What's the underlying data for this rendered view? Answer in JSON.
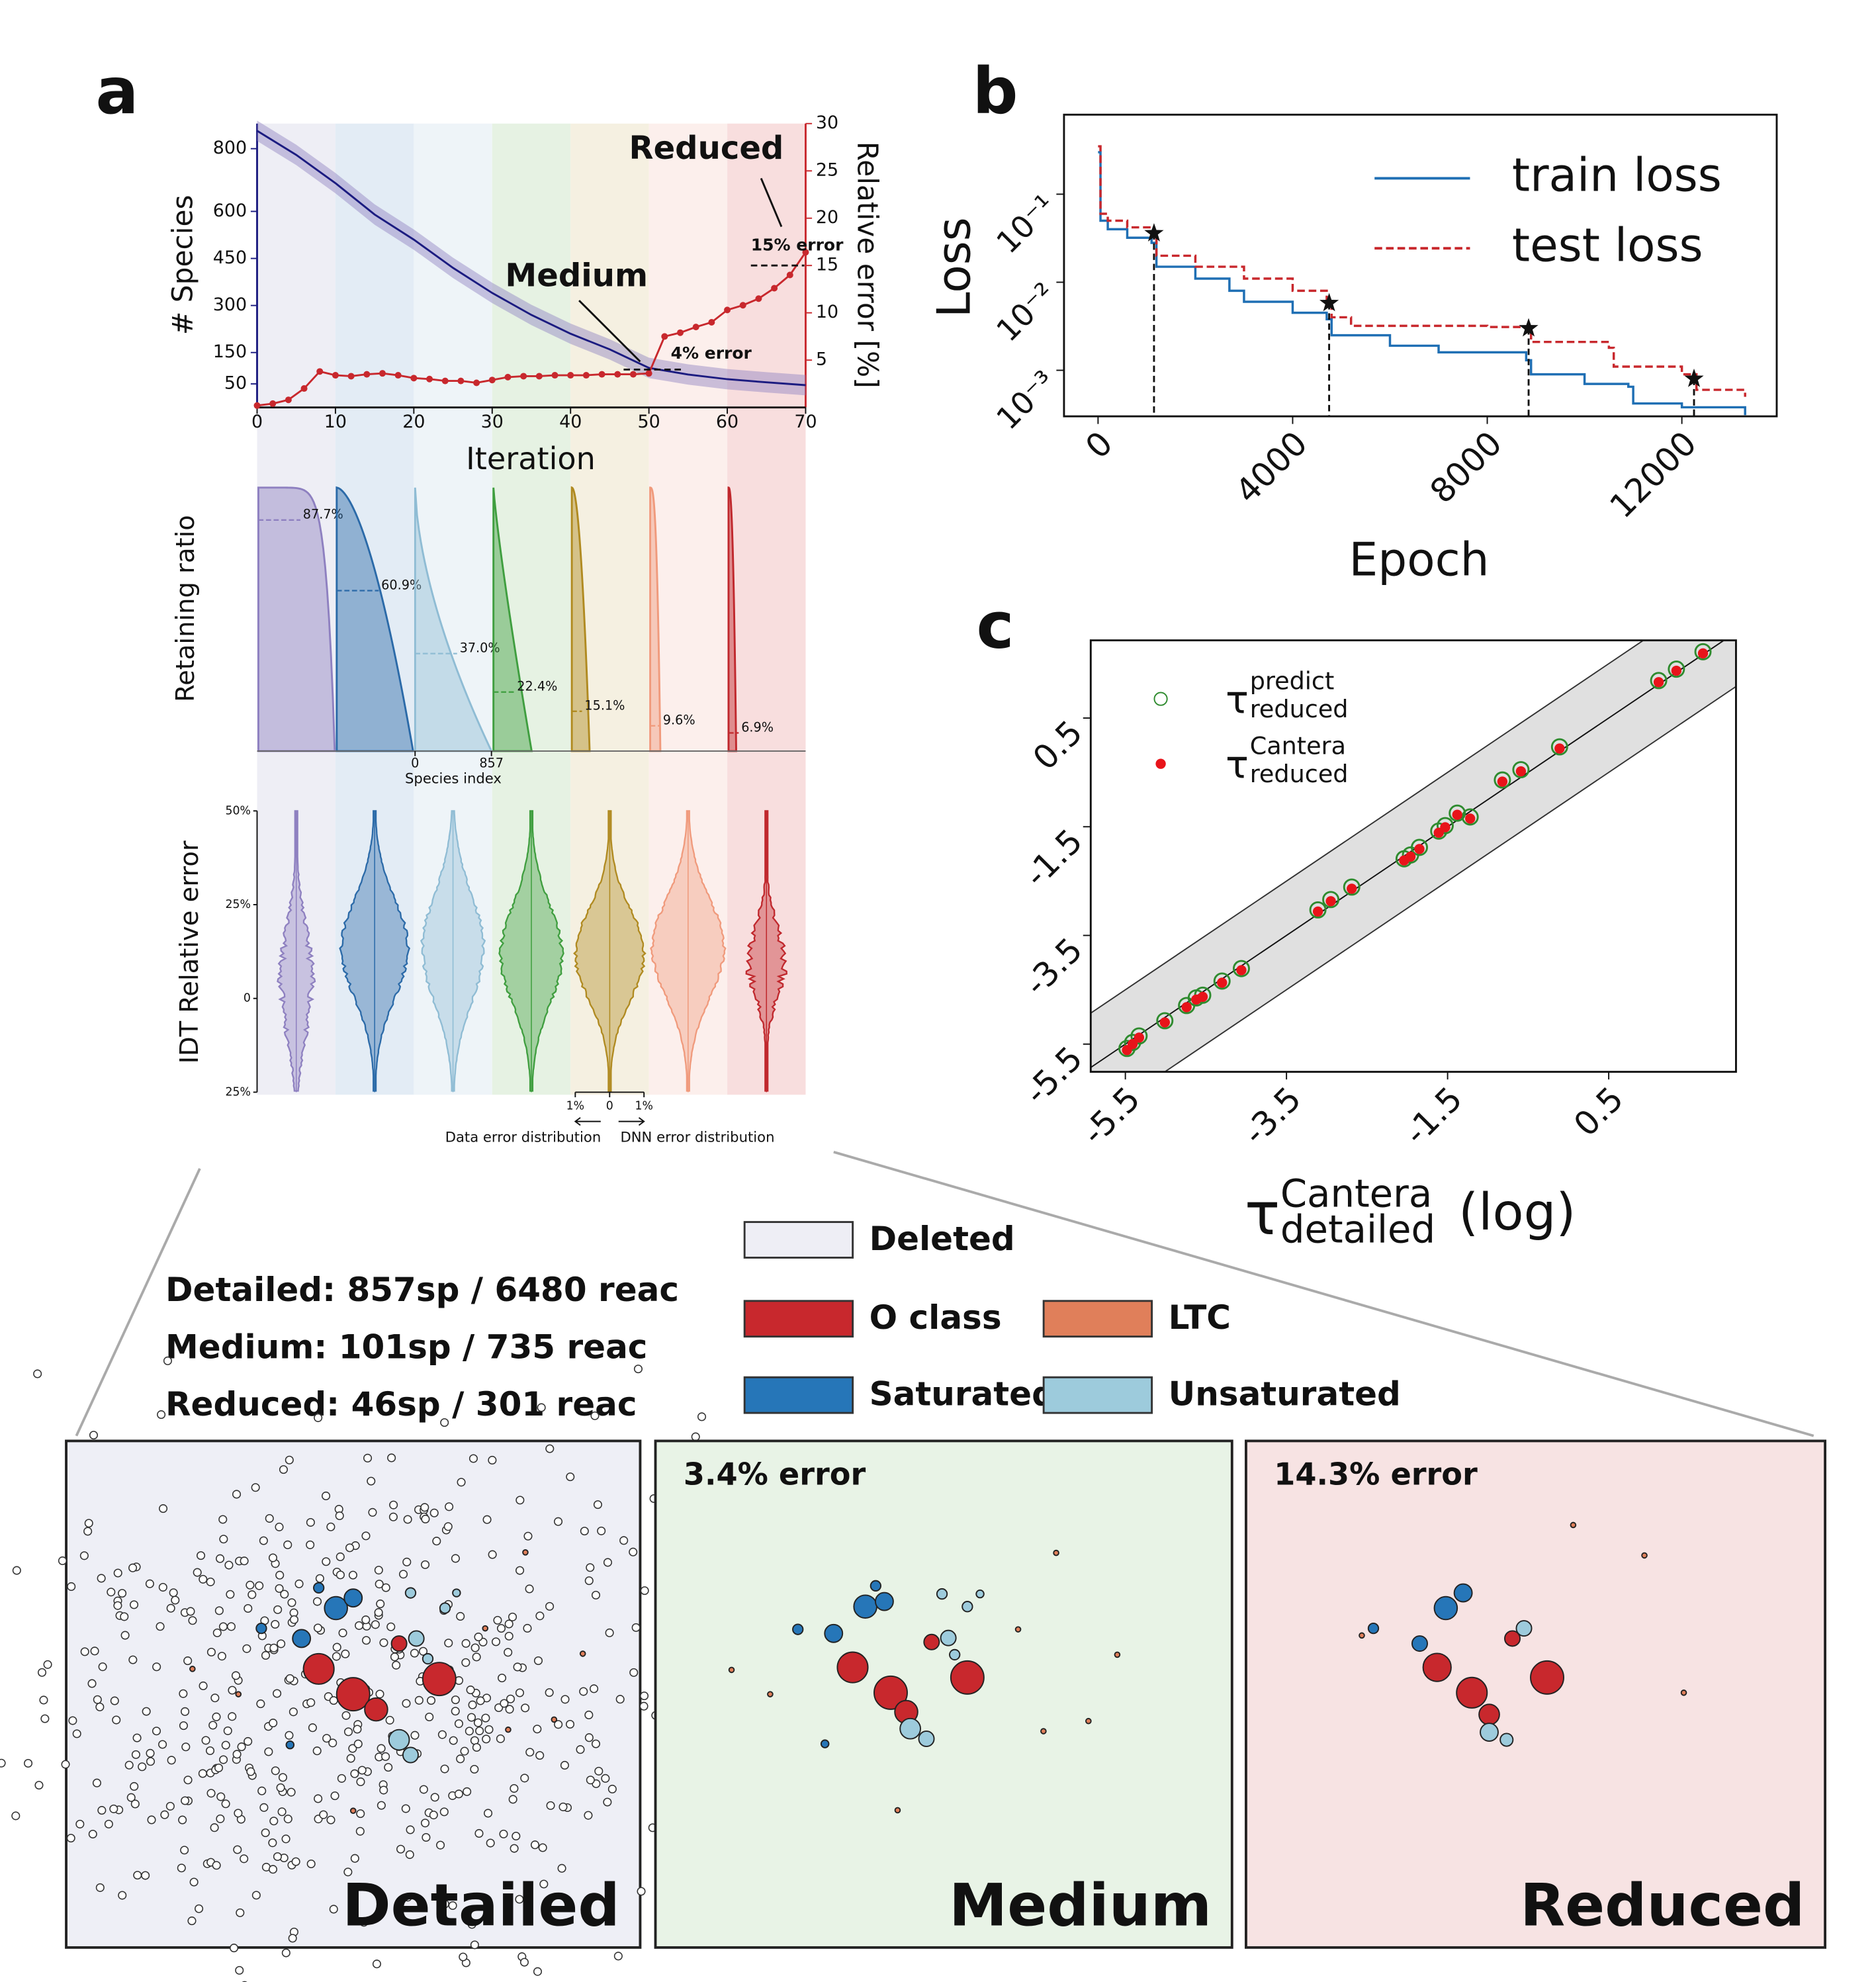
{
  "panel_labels": [
    "a",
    "b",
    "c"
  ],
  "chart_data": [
    {
      "type": "dual-line",
      "xlabel": "Iteration",
      "ylabel": "# Species",
      "y2label": "Relative error [%]",
      "xlim": [
        0,
        70
      ],
      "xticks": [
        0,
        10,
        20,
        30,
        40,
        50,
        60,
        70
      ],
      "ylim": [
        -25,
        880
      ],
      "yticks": [
        50,
        150,
        300,
        450,
        600,
        800
      ],
      "y2lim": [
        0,
        30
      ],
      "y2ticks": [
        5,
        10,
        15,
        20,
        25,
        30
      ],
      "series": [
        {
          "color": "#1b1b80",
          "x": [
            0,
            5,
            10,
            15,
            20,
            25,
            30,
            35,
            40,
            45,
            50,
            55,
            60,
            65,
            70
          ],
          "values": [
            857,
            780,
            690,
            590,
            510,
            420,
            340,
            270,
            210,
            160,
            101,
            80,
            65,
            55,
            46
          ]
        },
        {
          "color": "#c8282d",
          "axis": "y2",
          "marker": "o",
          "x": [
            0,
            2,
            4,
            6,
            8,
            10,
            12,
            14,
            16,
            18,
            20,
            22,
            24,
            26,
            28,
            30,
            32,
            34,
            36,
            38,
            40,
            42,
            44,
            46,
            48,
            50,
            52,
            54,
            56,
            58,
            60,
            62,
            64,
            66,
            68,
            70
          ],
          "values": [
            0.2,
            0.4,
            0.8,
            2.0,
            3.8,
            3.4,
            3.3,
            3.5,
            3.6,
            3.4,
            3.1,
            3.0,
            2.8,
            2.8,
            2.6,
            2.9,
            3.2,
            3.3,
            3.3,
            3.4,
            3.4,
            3.4,
            3.5,
            3.5,
            3.5,
            3.6,
            7.5,
            7.9,
            8.5,
            9.0,
            10.3,
            10.8,
            11.5,
            12.6,
            14.0,
            16.4
          ]
        }
      ],
      "annotations": [
        "Reduced",
        "Medium"
      ],
      "reference_lines": [
        {
          "value": 15,
          "label": "15% error"
        },
        {
          "value": 4,
          "label": "4% error"
        }
      ]
    },
    {
      "type": "ridge",
      "ylabel": "Retaining ratio",
      "ylim": [
        0,
        100
      ],
      "values": [
        87.7,
        60.9,
        37.0,
        22.4,
        15.1,
        9.6,
        6.9
      ],
      "value_labels": [
        "87.7%",
        "60.9%",
        "37.0%",
        "22.4%",
        "15.1%",
        "9.6%",
        "6.9%"
      ],
      "colors": [
        "#8e80c0",
        "#2b6aa8",
        "#8fbcd4",
        "#3f9e3f",
        "#b08a20",
        "#f09a7c",
        "#c0282d"
      ],
      "xticks": [
        0,
        857
      ],
      "xlabel": "Species index"
    },
    {
      "type": "violin",
      "ylabel": "IDT Relative error",
      "ylim": [
        -25,
        50
      ],
      "yticks": [
        {
          "value": -25,
          "label": "25%"
        },
        0,
        {
          "value": 25,
          "label": "25%"
        },
        {
          "value": 50,
          "label": "50%"
        }
      ],
      "colors": [
        "#8e80c0",
        "#2b6aa8",
        "#8fbcd4",
        "#3f9e3f",
        "#b08a20",
        "#f09a7c",
        "#c0282d"
      ],
      "scale_ticks": [
        {
          "value": -1,
          "label": "1%"
        },
        0,
        {
          "value": 1,
          "label": "1%"
        }
      ],
      "scale_labels": [
        "Data error distribution",
        "DNN error distribution"
      ]
    },
    {
      "type": "log-line",
      "xlabel": "Epoch",
      "ylabel": "Loss",
      "log_y": true,
      "xlim": [
        -700,
        13950
      ],
      "xticks": [
        0,
        4000,
        8000,
        12000
      ],
      "ylim": [
        0.0003,
        0.8
      ],
      "yticks": [
        {
          "value": 0.1,
          "label": "10⁻¹"
        },
        {
          "value": 0.01,
          "label": "10⁻²"
        },
        {
          "value": 0.001,
          "label": "10⁻³"
        }
      ],
      "legend": "upper right",
      "series": [
        {
          "name": "train loss",
          "color": "#1f6fb4",
          "style": "solid",
          "x": [
            0,
            50,
            200,
            600,
            1100,
            1200,
            2000,
            2700,
            3000,
            4000,
            4700,
            4800,
            6000,
            7000,
            8800,
            8900,
            10000,
            10900,
            11000,
            12000,
            13300
          ],
          "values": [
            0.3,
            0.05,
            0.04,
            0.032,
            0.028,
            0.015,
            0.011,
            0.008,
            0.006,
            0.0045,
            0.0038,
            0.0025,
            0.0019,
            0.0016,
            0.0013,
            0.0009,
            0.0007,
            0.00065,
            0.00042,
            0.00038,
            0.00031
          ]
        },
        {
          "name": "test loss",
          "color": "#c8282d",
          "style": "dashed",
          "x": [
            0,
            50,
            200,
            600,
            1100,
            1200,
            2000,
            3000,
            4000,
            4700,
            4800,
            5200,
            8000,
            8800,
            8900,
            10500,
            10600,
            12000,
            12300,
            13300
          ],
          "values": [
            0.35,
            0.06,
            0.05,
            0.042,
            0.036,
            0.02,
            0.015,
            0.011,
            0.008,
            0.0058,
            0.004,
            0.0032,
            0.0031,
            0.003,
            0.0021,
            0.0018,
            0.0011,
            0.0009,
            0.0006,
            0.0005
          ]
        }
      ],
      "markers": {
        "x": [
          1150,
          4750,
          8850,
          12250
        ],
        "values": [
          0.036,
          0.0058,
          0.003,
          0.0008
        ]
      }
    },
    {
      "type": "scatter",
      "xlabel": {
        "symbol": "τ",
        "sup": "Cantera",
        "sub": "detailed",
        "text": "(log)"
      },
      "xlim": [
        -5.93,
        2.08
      ],
      "ylim": [
        -6.01,
        1.93
      ],
      "xticks": [
        -5.5,
        -3.5,
        -1.5,
        0.5
      ],
      "yticks": [
        -5.5,
        -3.5,
        -1.5,
        0.5
      ],
      "band": 1,
      "legend": "upper left",
      "series": [
        {
          "symbol": "τ",
          "sup": "predict",
          "sub": "reduced",
          "color": "#2e8b2e",
          "marker": "open",
          "x": [
            -5.48,
            -5.41,
            -5.33,
            -5.01,
            -4.74,
            -4.62,
            -4.54,
            -4.3,
            -4.06,
            -3.11,
            -2.95,
            -2.69,
            -2.04,
            -1.96,
            -1.85,
            -1.61,
            -1.53,
            -1.38,
            -1.22,
            -0.82,
            -0.59,
            -0.11,
            1.12,
            1.34,
            1.67
          ],
          "values": [
            -5.58,
            -5.47,
            -5.35,
            -5.07,
            -4.79,
            -4.65,
            -4.6,
            -4.34,
            -4.11,
            -3.03,
            -2.84,
            -2.61,
            -2.09,
            -2.02,
            -1.88,
            -1.58,
            -1.48,
            -1.25,
            -1.32,
            -0.64,
            -0.45,
            -0.03,
            1.19,
            1.4,
            1.72
          ]
        },
        {
          "symbol": "τ",
          "sup": "Cantera",
          "sub": "reduced",
          "color": "#e8141a",
          "marker": "filled",
          "x": [
            -5.48,
            -5.41,
            -5.33,
            -5.01,
            -4.74,
            -4.62,
            -4.54,
            -4.3,
            -4.06,
            -3.11,
            -2.95,
            -2.69,
            -2.04,
            -1.96,
            -1.85,
            -1.61,
            -1.53,
            -1.38,
            -1.22,
            -0.82,
            -0.59,
            -0.11,
            1.12,
            1.34,
            1.67
          ],
          "values": [
            -5.61,
            -5.5,
            -5.38,
            -5.1,
            -4.82,
            -4.68,
            -4.63,
            -4.37,
            -4.14,
            -3.06,
            -2.87,
            -2.64,
            -2.12,
            -2.05,
            -1.91,
            -1.61,
            -1.51,
            -1.28,
            -1.35,
            -0.67,
            -0.48,
            -0.06,
            1.16,
            1.37,
            1.69
          ]
        }
      ]
    },
    {
      "type": "species-map",
      "legend": [
        {
          "label": "Deleted",
          "color": "#eeeef5"
        },
        {
          "label": "O class",
          "color": "#c8282d"
        },
        {
          "label": "LTC",
          "color": "#e07f5a"
        },
        {
          "label": "Saturated",
          "color": "#2676b8"
        },
        {
          "label": "Unsaturated",
          "color": "#9dcbdc"
        }
      ],
      "stats": [
        "Detailed: 857sp / 6480 reac",
        "Medium: 101sp / 735 reac",
        "Reduced: 46sp / 301 reac"
      ],
      "panels": [
        {
          "name": "Detailed",
          "background": "#eeeff6",
          "nodes": [
            [
              0.44,
              0.45,
              12,
              1
            ],
            [
              0.5,
              0.5,
              13,
              1
            ],
            [
              0.54,
              0.53,
              9,
              1
            ],
            [
              0.65,
              0.47,
              13,
              1
            ],
            [
              0.58,
              0.4,
              6,
              1
            ],
            [
              0.47,
              0.33,
              9,
              3
            ],
            [
              0.5,
              0.31,
              7,
              3
            ],
            [
              0.41,
              0.39,
              7,
              3
            ],
            [
              0.34,
              0.37,
              4,
              3
            ],
            [
              0.44,
              0.29,
              4,
              3
            ],
            [
              0.39,
              0.6,
              3,
              3
            ],
            [
              0.58,
              0.59,
              8,
              4
            ],
            [
              0.6,
              0.62,
              6,
              4
            ],
            [
              0.61,
              0.39,
              6,
              4
            ],
            [
              0.6,
              0.3,
              4,
              4
            ],
            [
              0.66,
              0.33,
              4,
              4
            ],
            [
              0.68,
              0.3,
              3,
              4
            ],
            [
              0.63,
              0.43,
              4,
              4
            ],
            [
              0.22,
              0.45,
              2,
              2
            ],
            [
              0.3,
              0.5,
              2,
              2
            ],
            [
              0.8,
              0.22,
              2,
              2
            ],
            [
              0.9,
              0.42,
              2,
              2
            ],
            [
              0.77,
              0.57,
              2,
              2
            ],
            [
              0.85,
              0.55,
              2,
              2
            ],
            [
              0.5,
              0.73,
              2,
              2
            ],
            [
              0.73,
              0.37,
              2,
              2
            ]
          ]
        },
        {
          "name": "Medium",
          "error": "3.4% error",
          "background": "#e8f3e6",
          "nodes": [
            [
              0.342,
              0.447,
              12,
              1
            ],
            [
              0.408,
              0.497,
              13,
              1
            ],
            [
              0.435,
              0.535,
              9,
              1
            ],
            [
              0.541,
              0.467,
              13,
              1
            ],
            [
              0.479,
              0.397,
              6,
              1
            ],
            [
              0.364,
              0.327,
              9,
              3
            ],
            [
              0.397,
              0.317,
              7,
              3
            ],
            [
              0.309,
              0.38,
              7,
              3
            ],
            [
              0.247,
              0.372,
              4,
              3
            ],
            [
              0.382,
              0.286,
              4,
              3
            ],
            [
              0.294,
              0.598,
              3,
              3
            ],
            [
              0.442,
              0.568,
              8,
              4
            ],
            [
              0.47,
              0.588,
              6,
              4
            ],
            [
              0.508,
              0.389,
              6,
              4
            ],
            [
              0.497,
              0.302,
              4,
              4
            ],
            [
              0.541,
              0.327,
              4,
              4
            ],
            [
              0.563,
              0.302,
              3,
              4
            ],
            [
              0.519,
              0.422,
              4,
              4
            ],
            [
              0.132,
              0.452,
              2,
              2
            ],
            [
              0.199,
              0.5,
              2,
              2
            ],
            [
              0.695,
              0.221,
              2,
              2
            ],
            [
              0.801,
              0.422,
              2,
              2
            ],
            [
              0.673,
              0.573,
              2,
              2
            ],
            [
              0.751,
              0.553,
              2,
              2
            ],
            [
              0.42,
              0.729,
              2,
              2
            ],
            [
              0.629,
              0.372,
              2,
              2
            ]
          ]
        },
        {
          "name": "Reduced",
          "error": "14.3% error",
          "background": "#f7e3e3",
          "nodes": [
            [
              0.33,
              0.447,
              11,
              1
            ],
            [
              0.39,
              0.497,
              12,
              1
            ],
            [
              0.42,
              0.54,
              8,
              1
            ],
            [
              0.52,
              0.467,
              13,
              1
            ],
            [
              0.46,
              0.39,
              6,
              1
            ],
            [
              0.345,
              0.33,
              9,
              3
            ],
            [
              0.375,
              0.3,
              7,
              3
            ],
            [
              0.3,
              0.4,
              6,
              3
            ],
            [
              0.22,
              0.37,
              4,
              3
            ],
            [
              0.42,
              0.575,
              7,
              4
            ],
            [
              0.45,
              0.59,
              5,
              4
            ],
            [
              0.48,
              0.37,
              6,
              4
            ],
            [
              0.565,
              0.166,
              2,
              2
            ],
            [
              0.688,
              0.226,
              2,
              2
            ],
            [
              0.756,
              0.497,
              2,
              2
            ],
            [
              0.2,
              0.384,
              2,
              2
            ]
          ]
        }
      ]
    }
  ]
}
